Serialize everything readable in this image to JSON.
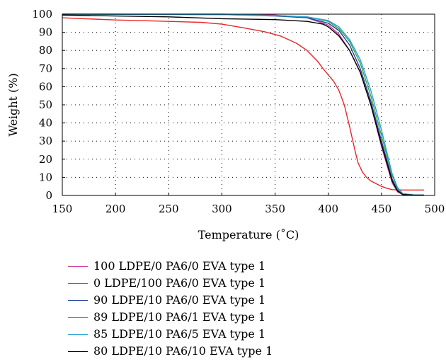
{
  "chart_data": {
    "type": "line",
    "title": "",
    "xlabel": "Temperature (˚C)",
    "ylabel": "Weight (%)",
    "xlim": [
      150,
      500
    ],
    "ylim": [
      0,
      100
    ],
    "xticks": [
      150,
      200,
      250,
      300,
      350,
      400,
      450,
      500
    ],
    "yticks": [
      0,
      10,
      20,
      30,
      40,
      50,
      60,
      70,
      80,
      90,
      100
    ],
    "grid": "dotted",
    "legend_position": "bottom",
    "series": [
      {
        "name": "100 LDPE/0 PA6/0 EVA type 1",
        "color": "#cc3399",
        "x": [
          150,
          300,
          350,
          380,
          400,
          410,
          420,
          430,
          440,
          450,
          460,
          465,
          470,
          480,
          490
        ],
        "y": [
          100,
          100,
          99.5,
          98,
          94,
          89,
          80,
          68,
          50,
          27,
          7,
          2,
          0.5,
          0.3,
          0.3
        ]
      },
      {
        "name": "0 LDPE/100 PA6/0 EVA type 1",
        "color": "#e8262a",
        "x": [
          150,
          170,
          200,
          250,
          280,
          300,
          320,
          340,
          355,
          370,
          380,
          390,
          395,
          400,
          405,
          410,
          415,
          420,
          425,
          428,
          432,
          436,
          440,
          445,
          450,
          455,
          460,
          470,
          480,
          490
        ],
        "y": [
          98,
          97.5,
          96.8,
          96,
          95.5,
          94.5,
          92.5,
          90.3,
          88,
          84,
          80,
          74,
          70,
          66.5,
          63,
          58,
          50,
          38,
          25,
          18,
          13,
          10,
          8,
          6.5,
          5,
          4,
          3.2,
          3,
          3,
          3
        ]
      },
      {
        "name": "90 LDPE/10 PA6/0 EVA type 1",
        "color": "#1f3f99",
        "x": [
          150,
          300,
          350,
          380,
          400,
          410,
          420,
          430,
          440,
          450,
          460,
          465,
          470,
          480,
          490
        ],
        "y": [
          100,
          99.8,
          99,
          98,
          95,
          91,
          83,
          70,
          52,
          30,
          9,
          3,
          0.5,
          0.3,
          0.2
        ]
      },
      {
        "name": "89 LDPE/10 PA6/1 EVA type 1",
        "color": "#33aa44",
        "x": [
          150,
          300,
          350,
          380,
          400,
          410,
          420,
          430,
          440,
          450,
          460,
          465,
          470,
          480,
          490
        ],
        "y": [
          100,
          99.8,
          99.2,
          98.5,
          96,
          92,
          85,
          73,
          55,
          33,
          11,
          4,
          1,
          0.3,
          0.2
        ]
      },
      {
        "name": "85 LDPE/10 PA6/5 EVA type 1",
        "color": "#2a9fd8",
        "x": [
          150,
          300,
          350,
          380,
          400,
          410,
          420,
          430,
          440,
          450,
          460,
          465,
          470,
          480,
          490
        ],
        "y": [
          100,
          99.8,
          99.3,
          98.5,
          96.5,
          93,
          86,
          75,
          58,
          36,
          12,
          4.5,
          1,
          0.3,
          0.2
        ]
      },
      {
        "name": "80 LDPE/10 PA6/10 EVA type 1",
        "color": "#000000",
        "x": [
          150,
          200,
          250,
          300,
          350,
          380,
          395,
          400,
          410,
          420,
          430,
          440,
          450,
          460,
          465,
          470,
          480,
          490
        ],
        "y": [
          99.5,
          99,
          98.5,
          97.5,
          97,
          96,
          94.5,
          93,
          88,
          80,
          68,
          50,
          28,
          8,
          2.5,
          0.5,
          0.2,
          0.1
        ]
      }
    ]
  }
}
